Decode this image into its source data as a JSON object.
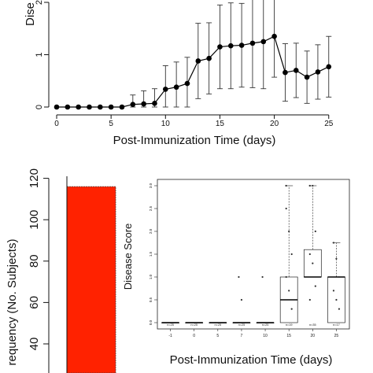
{
  "chart_data": [
    {
      "type": "line",
      "xlabel": "Post-Immunization Time (days)",
      "ylabel": "Disease Score",
      "ylabel_visible": "Dise",
      "x_ticks": [
        "0",
        "5",
        "10",
        "15",
        "20",
        "25"
      ],
      "y_ticks": [
        "0",
        "1",
        "2"
      ],
      "xlim": [
        0,
        25
      ],
      "series": [
        {
          "x": [
            0,
            1,
            2,
            3,
            4,
            5,
            6,
            7,
            8,
            9,
            10,
            11,
            12,
            13,
            14,
            15,
            16,
            17,
            18,
            19,
            20,
            21,
            22,
            23,
            24,
            25
          ],
          "y": [
            0,
            0,
            0,
            0,
            0,
            0,
            0,
            0.05,
            0.06,
            0.07,
            0.34,
            0.38,
            0.45,
            0.88,
            0.93,
            1.15,
            1.17,
            1.18,
            1.22,
            1.25,
            1.35,
            0.66,
            0.7,
            0.57,
            0.67,
            0.77
          ],
          "err": [
            0,
            0,
            0,
            0,
            0,
            0,
            0,
            0.18,
            0.25,
            0.28,
            0.45,
            0.48,
            0.5,
            0.72,
            0.68,
            0.8,
            0.82,
            0.8,
            0.85,
            0.9,
            0.78,
            0.55,
            0.52,
            0.5,
            0.52,
            0.58
          ]
        }
      ]
    },
    {
      "type": "bar",
      "ylabel": "Frequency (No. Subjects)",
      "ylabel_visible": "requency (No. Subjects)",
      "y_ticks": [
        "40",
        "60",
        "80",
        "100",
        "120"
      ],
      "values": [
        116
      ],
      "color": "#ff2200"
    },
    {
      "type": "box",
      "xlabel": "Post-Immunization Time (days)",
      "ylabel": "Disease Score",
      "categories": [
        "-1",
        "0",
        "5",
        "7",
        "10",
        "15",
        "20",
        "25"
      ],
      "n_labels": [
        "n=25",
        "n=25",
        "n=25",
        "n=25",
        "n=25",
        "n=19",
        "n=35",
        "n=17"
      ],
      "y_ticks": [
        "0.0",
        "0.5",
        "1.0",
        "1.5",
        "2.0",
        "2.5",
        "3.0"
      ],
      "boxes": [
        {
          "min": 0,
          "q1": 0,
          "median": 0,
          "q3": 0,
          "max": 0
        },
        {
          "min": 0,
          "q1": 0,
          "median": 0,
          "q3": 0,
          "max": 0
        },
        {
          "min": 0,
          "q1": 0,
          "median": 0,
          "q3": 0,
          "max": 0
        },
        {
          "min": 0,
          "q1": 0,
          "median": 0,
          "q3": 0,
          "max": 0
        },
        {
          "min": 0,
          "q1": 0,
          "median": 0,
          "q3": 0,
          "max": 0
        },
        {
          "min": 0,
          "q1": 0,
          "median": 0.5,
          "q3": 1.0,
          "max": 3.0
        },
        {
          "min": 0,
          "q1": 1.0,
          "median": 1.0,
          "q3": 1.6,
          "max": 3.0
        },
        {
          "min": 0,
          "q1": 0,
          "median": 1.0,
          "q3": 1.0,
          "max": 1.75
        }
      ],
      "points": [
        [],
        [],
        [],
        [
          1.0,
          0.5
        ],
        [
          1.0
        ],
        [
          2.5,
          2.0,
          1.5,
          1.0,
          0.7,
          0.3,
          3.0
        ],
        [
          3.0,
          3.0,
          2.0,
          1.5,
          1.3,
          0.8,
          0.5
        ],
        [
          1.75,
          1.4,
          1.0,
          0.7,
          0.5,
          0.3
        ]
      ]
    }
  ]
}
